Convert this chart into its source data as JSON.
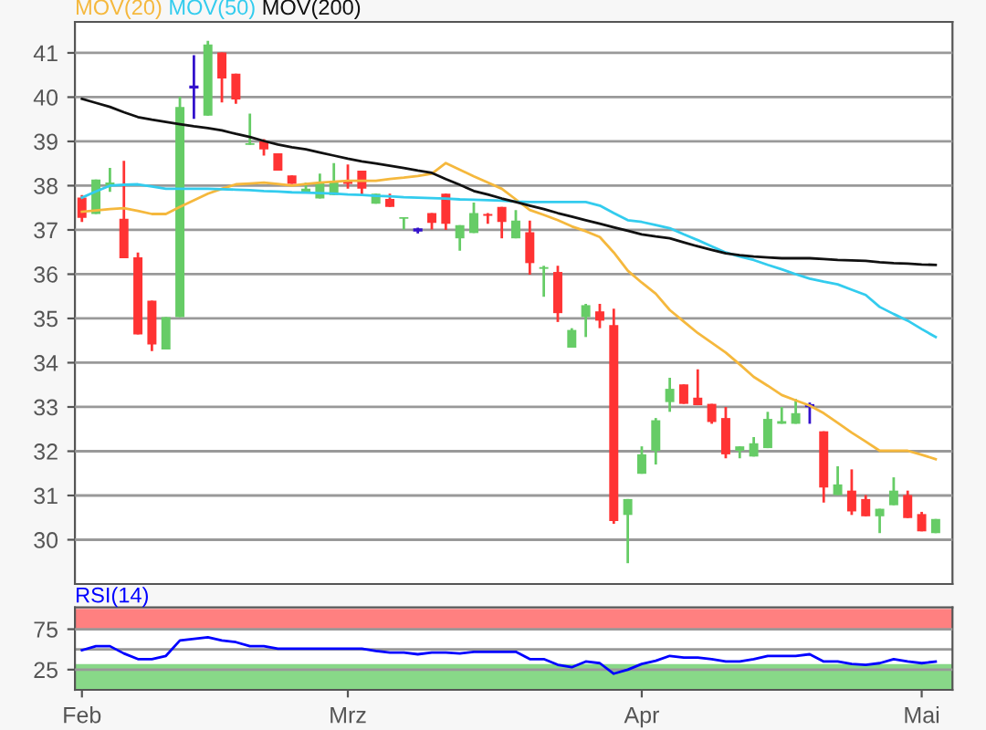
{
  "chart_data": [
    {
      "type": "candlestick",
      "categories": [
        null,
        null,
        null,
        null,
        null,
        null,
        null,
        null,
        null,
        null,
        null,
        null,
        null,
        null,
        null,
        null,
        null,
        null,
        null,
        null,
        null,
        null,
        null,
        null,
        null,
        null,
        null,
        null,
        null,
        null,
        null,
        null,
        null,
        null,
        null,
        null,
        null,
        null,
        null,
        null,
        null,
        null,
        null,
        null,
        null,
        null,
        null,
        null,
        null,
        null,
        null,
        null,
        null,
        null,
        null,
        null,
        null,
        null,
        null,
        null,
        null,
        null
      ],
      "ohlc": [
        [
          37.73,
          37.79,
          37.18,
          37.27
        ],
        [
          37.36,
          38.14,
          37.36,
          38.14
        ],
        [
          38.0,
          38.4,
          37.86,
          38.07
        ],
        [
          37.25,
          38.56,
          36.36,
          36.36
        ],
        [
          36.38,
          36.49,
          34.64,
          34.64
        ],
        [
          35.4,
          35.4,
          34.26,
          34.41
        ],
        [
          34.3,
          35.03,
          34.3,
          35.03
        ],
        [
          35.03,
          40.01,
          35.03,
          39.78
        ],
        [
          40.23,
          40.95,
          39.51,
          40.23
        ],
        [
          39.58,
          41.27,
          39.58,
          41.19
        ],
        [
          41.01,
          41.01,
          39.88,
          40.42
        ],
        [
          40.53,
          40.53,
          39.85,
          39.95
        ],
        [
          38.92,
          39.63,
          38.92,
          38.96
        ],
        [
          39.0,
          39.05,
          38.68,
          38.82
        ],
        [
          38.73,
          38.73,
          38.34,
          38.34
        ],
        [
          38.23,
          38.23,
          38.04,
          38.04
        ],
        [
          37.86,
          38.07,
          37.86,
          37.93
        ],
        [
          37.71,
          38.27,
          37.71,
          38.07
        ],
        [
          37.79,
          38.51,
          37.79,
          38.1
        ],
        [
          38.11,
          38.48,
          37.93,
          38.04
        ],
        [
          38.34,
          38.34,
          37.77,
          37.93
        ],
        [
          37.59,
          37.82,
          37.59,
          37.82
        ],
        [
          37.7,
          37.82,
          37.52,
          37.52
        ],
        [
          37.25,
          37.29,
          37.01,
          37.29
        ],
        [
          37.0,
          37.05,
          36.92,
          37.0
        ],
        [
          37.38,
          37.38,
          37.01,
          37.16
        ],
        [
          37.82,
          37.82,
          37.0,
          37.14
        ],
        [
          36.81,
          37.11,
          36.53,
          37.11
        ],
        [
          36.93,
          37.62,
          36.93,
          37.38
        ],
        [
          37.36,
          37.38,
          37.14,
          37.32
        ],
        [
          37.52,
          37.52,
          36.81,
          37.18
        ],
        [
          36.81,
          37.45,
          36.81,
          37.21
        ],
        [
          36.95,
          37.21,
          35.99,
          36.25
        ],
        [
          36.12,
          36.19,
          35.49,
          36.16
        ],
        [
          36.05,
          36.19,
          34.92,
          35.12
        ],
        [
          34.34,
          34.78,
          34.34,
          34.74
        ],
        [
          35.03,
          35.33,
          34.58,
          35.3
        ],
        [
          35.16,
          35.33,
          34.78,
          34.95
        ],
        [
          34.85,
          35.22,
          30.36,
          30.42
        ],
        [
          30.56,
          30.92,
          29.47,
          30.92
        ],
        [
          31.49,
          32.11,
          31.49,
          31.93
        ],
        [
          32.01,
          32.75,
          31.7,
          32.7
        ],
        [
          33.11,
          33.66,
          32.89,
          33.41
        ],
        [
          33.51,
          33.51,
          33.07,
          33.07
        ],
        [
          33.21,
          33.85,
          33.04,
          33.04
        ],
        [
          33.07,
          33.07,
          32.62,
          32.66
        ],
        [
          32.75,
          33.0,
          31.84,
          31.93
        ],
        [
          32.01,
          32.11,
          31.84,
          32.11
        ],
        [
          31.88,
          32.32,
          31.88,
          32.18
        ],
        [
          32.07,
          32.89,
          32.07,
          32.73
        ],
        [
          32.62,
          33.0,
          32.62,
          32.68
        ],
        [
          32.62,
          33.18,
          32.62,
          32.86
        ],
        [
          33.03,
          33.1,
          32.62,
          33.03
        ],
        [
          32.45,
          32.45,
          30.84,
          31.18
        ],
        [
          31.01,
          31.66,
          31.01,
          31.25
        ],
        [
          31.11,
          31.59,
          30.56,
          30.64
        ],
        [
          30.92,
          31.01,
          30.53,
          30.53
        ],
        [
          30.53,
          30.7,
          30.15,
          30.7
        ],
        [
          30.78,
          31.41,
          30.78,
          31.11
        ],
        [
          31.01,
          31.11,
          30.49,
          30.49
        ],
        [
          30.58,
          30.63,
          30.19,
          30.19
        ],
        [
          30.15,
          30.47,
          30.15,
          30.47
        ]
      ],
      "colors": [
        "#ff3333",
        "#66cc66",
        "#66cc66",
        "#ff3333",
        "#ff3333",
        "#ff3333",
        "#66cc66",
        "#66cc66",
        "#3311cc",
        "#66cc66",
        "#ff3333",
        "#ff3333",
        "#66cc66",
        "#ff3333",
        "#ff3333",
        "#ff3333",
        "#66cc66",
        "#66cc66",
        "#66cc66",
        "#ff3333",
        "#ff3333",
        "#66cc66",
        "#ff3333",
        "#66cc66",
        "#3311cc",
        "#ff3333",
        "#ff3333",
        "#66cc66",
        "#66cc66",
        "#ff3333",
        "#ff3333",
        "#66cc66",
        "#ff3333",
        "#66cc66",
        "#ff3333",
        "#66cc66",
        "#66cc66",
        "#ff3333",
        "#ff3333",
        "#66cc66",
        "#66cc66",
        "#66cc66",
        "#66cc66",
        "#ff3333",
        "#ff3333",
        "#ff3333",
        "#ff3333",
        "#66cc66",
        "#66cc66",
        "#66cc66",
        "#66cc66",
        "#66cc66",
        "#3311cc",
        "#ff3333",
        "#66cc66",
        "#ff3333",
        "#ff3333",
        "#66cc66",
        "#66cc66",
        "#ff3333",
        "#ff3333",
        "#66cc66"
      ],
      "series": [
        {
          "name": "MOV(20)",
          "type": "line",
          "color": "#f5b83d",
          "values": [
            37.41,
            37.44,
            37.47,
            37.49,
            37.43,
            37.36,
            37.36,
            37.52,
            37.67,
            37.82,
            37.93,
            38.03,
            38.05,
            38.07,
            38.04,
            38.0,
            38.04,
            38.07,
            38.09,
            38.11,
            38.11,
            38.11,
            38.15,
            38.18,
            38.22,
            38.27,
            38.51,
            38.36,
            38.21,
            38.07,
            37.93,
            37.69,
            37.45,
            37.34,
            37.22,
            37.08,
            36.97,
            36.84,
            36.49,
            36.08,
            35.81,
            35.56,
            35.19,
            34.93,
            34.67,
            34.45,
            34.23,
            33.96,
            33.68,
            33.48,
            33.27,
            33.15,
            33.03,
            32.86,
            32.64,
            32.42,
            32.22,
            32.01,
            32.01,
            32.01,
            31.92,
            31.82
          ]
        },
        {
          "name": "MOV(50)",
          "type": "line",
          "color": "#33ccee",
          "values": [
            37.73,
            37.87,
            38.0,
            38.02,
            38.03,
            37.98,
            37.93,
            37.93,
            37.93,
            37.93,
            37.92,
            37.91,
            37.9,
            37.88,
            37.87,
            37.85,
            37.84,
            37.83,
            37.82,
            37.8,
            37.79,
            37.77,
            37.76,
            37.74,
            37.73,
            37.72,
            37.71,
            37.69,
            37.68,
            37.67,
            37.66,
            37.64,
            37.63,
            37.63,
            37.63,
            37.63,
            37.63,
            37.55,
            37.38,
            37.22,
            37.18,
            37.11,
            37.04,
            36.9,
            36.77,
            36.63,
            36.49,
            36.4,
            36.32,
            36.21,
            36.11,
            36.0,
            35.9,
            35.83,
            35.77,
            35.65,
            35.53,
            35.26,
            35.1,
            34.95,
            34.76,
            34.58
          ]
        },
        {
          "name": "MOV(200)",
          "type": "line",
          "color": "#111111",
          "values": [
            39.96,
            39.87,
            39.78,
            39.66,
            39.55,
            39.49,
            39.44,
            39.39,
            39.34,
            39.3,
            39.25,
            39.17,
            39.1,
            39.01,
            38.93,
            38.87,
            38.82,
            38.75,
            38.68,
            38.61,
            38.55,
            38.5,
            38.45,
            38.4,
            38.34,
            38.29,
            38.15,
            38.02,
            37.88,
            37.8,
            37.71,
            37.63,
            37.55,
            37.47,
            37.38,
            37.3,
            37.22,
            37.14,
            37.06,
            36.98,
            36.9,
            36.85,
            36.81,
            36.72,
            36.63,
            36.55,
            36.47,
            36.43,
            36.4,
            36.38,
            36.36,
            36.36,
            36.36,
            36.34,
            36.32,
            36.31,
            36.3,
            36.27,
            36.25,
            36.24,
            36.22,
            36.21
          ]
        }
      ],
      "ylim": [
        29.0,
        41.7
      ],
      "yticks": [
        30,
        31,
        32,
        33,
        34,
        35,
        36,
        37,
        38,
        39,
        40,
        41
      ],
      "grid": "y",
      "legend": "top left",
      "tick_labels": "y"
    },
    {
      "type": "line",
      "categories": [
        "Feb",
        null,
        null,
        null,
        null,
        null,
        null,
        null,
        null,
        null,
        null,
        null,
        null,
        null,
        null,
        null,
        null,
        null,
        null,
        "Mrz",
        null,
        null,
        null,
        null,
        null,
        null,
        null,
        null,
        null,
        null,
        null,
        null,
        null,
        null,
        null,
        null,
        null,
        null,
        null,
        null,
        "Apr",
        null,
        null,
        null,
        null,
        null,
        null,
        null,
        null,
        null,
        null,
        null,
        null,
        null,
        null,
        null,
        null,
        null,
        null,
        null,
        "Mai",
        null
      ],
      "series": [
        {
          "name": "RSI(14)",
          "color": "#0000ff",
          "values": [
            49,
            54,
            54,
            45,
            38,
            38,
            42,
            61,
            63,
            65,
            61,
            59,
            54,
            54,
            51,
            51,
            51,
            51,
            51,
            51,
            51,
            48,
            46,
            46,
            44,
            46,
            46,
            45,
            47,
            47,
            47,
            47,
            38,
            38,
            31,
            28,
            35,
            33,
            20,
            25,
            32,
            36,
            42,
            40,
            40,
            38,
            35,
            35,
            38,
            42,
            42,
            42,
            44,
            35,
            35,
            32,
            31,
            33,
            38,
            35,
            33,
            35
          ]
        }
      ],
      "ylim": [
        0,
        102
      ],
      "yticks": [
        25,
        75
      ],
      "grid": "y",
      "legend": "top left",
      "ref_lines": [
        {
          "axis": "y",
          "value": 50,
          "color": "#999999"
        }
      ],
      "bands": [
        {
          "axis": "y",
          "from": 75,
          "to": 100,
          "color": "#ff8080"
        },
        {
          "axis": "y",
          "from": 0,
          "to": 32,
          "color": "#88d888"
        }
      ]
    }
  ]
}
